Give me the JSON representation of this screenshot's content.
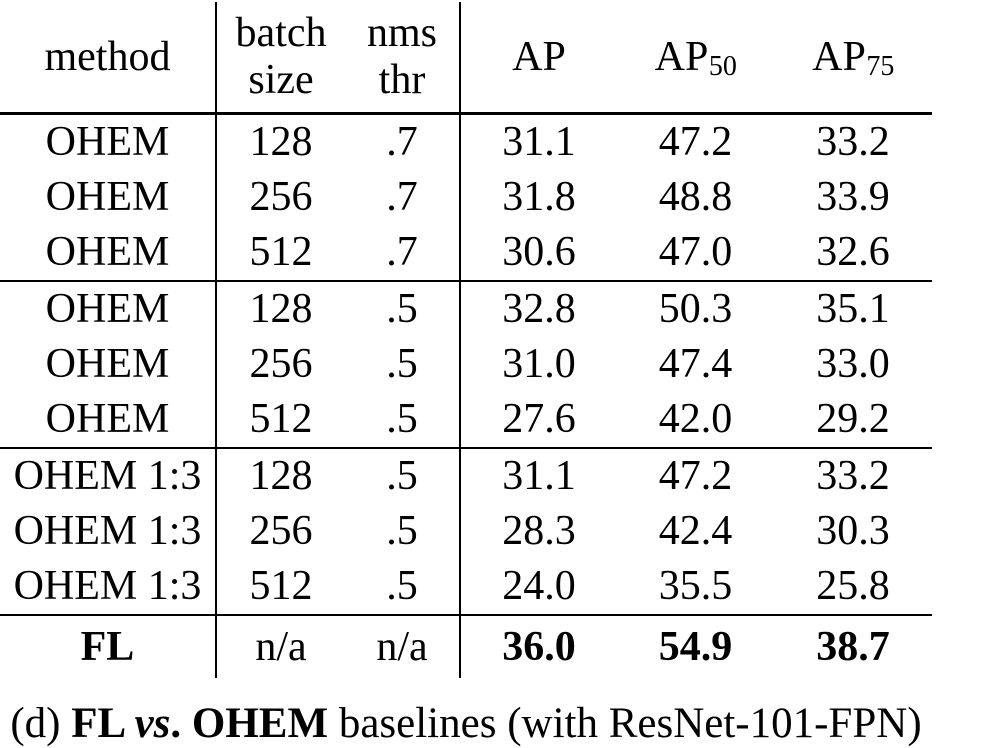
{
  "table": {
    "headers": {
      "method": "method",
      "batch_line1": "batch",
      "batch_line2": "size",
      "nms_line1": "nms",
      "nms_line2": "thr",
      "ap": "AP",
      "ap50_base": "AP",
      "ap50_sub": "50",
      "ap75_base": "AP",
      "ap75_sub": "75"
    },
    "rows": [
      {
        "method": "OHEM",
        "batch_size": "128",
        "nms_thr": ".7",
        "ap": "31.1",
        "ap50": "47.2",
        "ap75": "33.2",
        "bold": false,
        "group_start": false
      },
      {
        "method": "OHEM",
        "batch_size": "256",
        "nms_thr": ".7",
        "ap": "31.8",
        "ap50": "48.8",
        "ap75": "33.9",
        "bold": false,
        "group_start": false
      },
      {
        "method": "OHEM",
        "batch_size": "512",
        "nms_thr": ".7",
        "ap": "30.6",
        "ap50": "47.0",
        "ap75": "32.6",
        "bold": false,
        "group_start": false
      },
      {
        "method": "OHEM",
        "batch_size": "128",
        "nms_thr": ".5",
        "ap": "32.8",
        "ap50": "50.3",
        "ap75": "35.1",
        "bold": false,
        "group_start": true
      },
      {
        "method": "OHEM",
        "batch_size": "256",
        "nms_thr": ".5",
        "ap": "31.0",
        "ap50": "47.4",
        "ap75": "33.0",
        "bold": false,
        "group_start": false
      },
      {
        "method": "OHEM",
        "batch_size": "512",
        "nms_thr": ".5",
        "ap": "27.6",
        "ap50": "42.0",
        "ap75": "29.2",
        "bold": false,
        "group_start": false
      },
      {
        "method": "OHEM 1:3",
        "batch_size": "128",
        "nms_thr": ".5",
        "ap": "31.1",
        "ap50": "47.2",
        "ap75": "33.2",
        "bold": false,
        "group_start": true
      },
      {
        "method": "OHEM 1:3",
        "batch_size": "256",
        "nms_thr": ".5",
        "ap": "28.3",
        "ap50": "42.4",
        "ap75": "30.3",
        "bold": false,
        "group_start": false
      },
      {
        "method": "OHEM 1:3",
        "batch_size": "512",
        "nms_thr": ".5",
        "ap": "24.0",
        "ap50": "35.5",
        "ap75": "25.8",
        "bold": false,
        "group_start": false
      },
      {
        "method": "FL",
        "batch_size": "n/a",
        "nms_thr": "n/a",
        "ap": "36.0",
        "ap50": "54.9",
        "ap75": "38.7",
        "bold": true,
        "group_start": true
      }
    ]
  },
  "caption": {
    "full_text": "(d) FL vs. OHEM baselines (with ResNet-101-FPN)",
    "parts": [
      {
        "text": "(d) ",
        "style": "regular"
      },
      {
        "text": "FL ",
        "style": "bold"
      },
      {
        "text": "vs",
        "style": "bold-italic"
      },
      {
        "text": ". ",
        "style": "bold"
      },
      {
        "text": "OHEM",
        "style": "bold"
      },
      {
        "text": " baselines (with ResNet-101-FPN)",
        "style": "regular"
      }
    ]
  }
}
